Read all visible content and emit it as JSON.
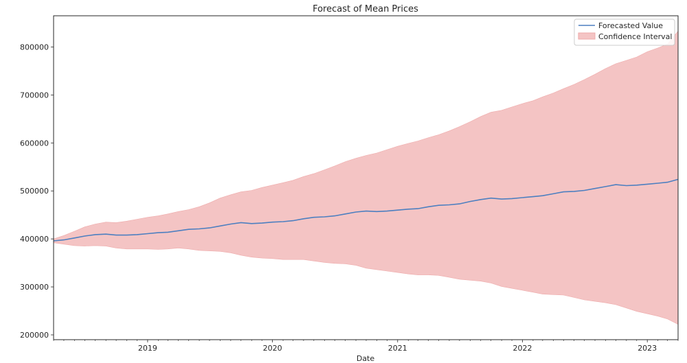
{
  "chart_data": {
    "type": "line",
    "title": "Forecast of Mean Prices",
    "xlabel": "Date",
    "ylabel": "",
    "xlim": [
      "2018-04-01",
      "2023-04-01"
    ],
    "ylim": [
      190000,
      865000
    ],
    "x_ticks": [
      "2019-01-01",
      "2020-01-01",
      "2021-01-01",
      "2022-01-01",
      "2023-01-01"
    ],
    "x_tick_labels": [
      "2019",
      "2020",
      "2021",
      "2022",
      "2023"
    ],
    "y_ticks": [
      200000,
      300000,
      400000,
      500000,
      600000,
      700000,
      800000
    ],
    "y_tick_labels": [
      "200000",
      "300000",
      "400000",
      "500000",
      "600000",
      "700000",
      "800000"
    ],
    "grid": false,
    "legend_position": "top-right",
    "colors": {
      "line": "#4c7fc0",
      "band": "#f4c4c4",
      "band_edge": "#eeaaaa"
    },
    "dates": [
      "2018-04-01",
      "2018-05-01",
      "2018-06-01",
      "2018-07-01",
      "2018-08-01",
      "2018-09-01",
      "2018-10-01",
      "2018-11-01",
      "2018-12-01",
      "2019-01-01",
      "2019-02-01",
      "2019-03-01",
      "2019-04-01",
      "2019-05-01",
      "2019-06-01",
      "2019-07-01",
      "2019-08-01",
      "2019-09-01",
      "2019-10-01",
      "2019-11-01",
      "2019-12-01",
      "2020-01-01",
      "2020-02-01",
      "2020-03-01",
      "2020-04-01",
      "2020-05-01",
      "2020-06-01",
      "2020-07-01",
      "2020-08-01",
      "2020-09-01",
      "2020-10-01",
      "2020-11-01",
      "2020-12-01",
      "2021-01-01",
      "2021-02-01",
      "2021-03-01",
      "2021-04-01",
      "2021-05-01",
      "2021-06-01",
      "2021-07-01",
      "2021-08-01",
      "2021-09-01",
      "2021-10-01",
      "2021-11-01",
      "2021-12-01",
      "2022-01-01",
      "2022-02-01",
      "2022-03-01",
      "2022-04-01",
      "2022-05-01",
      "2022-06-01",
      "2022-07-01",
      "2022-08-01",
      "2022-09-01",
      "2022-10-01",
      "2022-11-01",
      "2022-12-01",
      "2023-01-01",
      "2023-02-01",
      "2023-03-01",
      "2023-04-01"
    ],
    "series": [
      {
        "name": "Forecasted Value",
        "values": [
          396000,
          398000,
          402000,
          406000,
          409000,
          410000,
          408000,
          408000,
          409000,
          411000,
          413000,
          414000,
          417000,
          420000,
          421000,
          423000,
          427000,
          431000,
          434000,
          432000,
          433000,
          435000,
          436000,
          438000,
          442000,
          445000,
          446000,
          448000,
          452000,
          456000,
          458000,
          457000,
          458000,
          460000,
          462000,
          463000,
          467000,
          470000,
          471000,
          473000,
          478000,
          482000,
          485000,
          483000,
          484000,
          486000,
          488000,
          490000,
          494000,
          498000,
          499000,
          501000,
          505000,
          509000,
          513000,
          511000,
          512000,
          514000,
          516000,
          518000,
          524000
        ]
      }
    ],
    "confidence_interval": {
      "name": "Confidence Interval",
      "lower": [
        392000,
        389000,
        386000,
        385000,
        386000,
        385000,
        381000,
        379000,
        379000,
        379000,
        378000,
        379000,
        381000,
        379000,
        376000,
        375000,
        374000,
        371000,
        366000,
        362000,
        360000,
        359000,
        357000,
        357000,
        357000,
        354000,
        351000,
        349000,
        348000,
        345000,
        339000,
        336000,
        333000,
        330000,
        327000,
        325000,
        325000,
        324000,
        320000,
        316000,
        314000,
        312000,
        308000,
        301000,
        297000,
        293000,
        289000,
        285000,
        284000,
        283000,
        278000,
        273000,
        270000,
        267000,
        263000,
        256000,
        249000,
        244000,
        239000,
        233000,
        222000
      ],
      "upper": [
        400000,
        407000,
        416000,
        425000,
        431000,
        435000,
        434000,
        437000,
        441000,
        445000,
        448000,
        452000,
        457000,
        461000,
        467000,
        475000,
        485000,
        492000,
        498000,
        501000,
        507000,
        512000,
        517000,
        522000,
        530000,
        536000,
        544000,
        552000,
        561000,
        568000,
        574000,
        579000,
        586000,
        593000,
        599000,
        604000,
        611000,
        617000,
        625000,
        634000,
        644000,
        655000,
        664000,
        668000,
        675000,
        682000,
        688000,
        696000,
        704000,
        713000,
        722000,
        732000,
        743000,
        755000,
        765000,
        772000,
        779000,
        790000,
        798000,
        806000,
        833000
      ]
    }
  }
}
